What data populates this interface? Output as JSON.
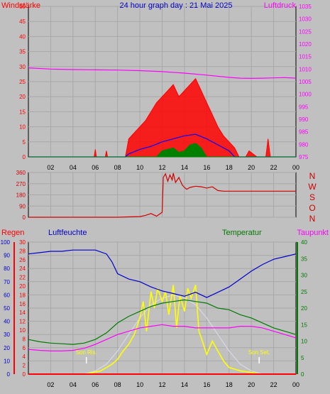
{
  "page": {
    "title": "24 hour graph day : 21 Mai 2025"
  },
  "colors": {
    "background": "#c0c0c0",
    "plot_bg": "#c0c0c0",
    "grid": "#a8a8a8",
    "wind": "#ff0000",
    "gust_green": "#008000",
    "wind_avg": "#0000ff",
    "pressure": "#ff00ff",
    "direction": "#d00000",
    "humidity": "#0000cc",
    "temperature": "#007a00",
    "dewpoint": "#ff00ff",
    "solar": "#ffff00",
    "uv": "#d8d8e8",
    "rain": "#ff0000"
  },
  "chart_data": [
    {
      "type": "line",
      "panel": "wind-pressure",
      "title": "24 hour graph day : 21 Mai 2025",
      "left_label": "Windstärke",
      "right_label": "Luftdruck",
      "x_ticks": [
        "02",
        "04",
        "06",
        "08",
        "10",
        "12",
        "14",
        "16",
        "18",
        "20",
        "22",
        "00"
      ],
      "ylim_left": [
        0,
        50
      ],
      "y_ticks_left": [
        "0",
        "5",
        "10",
        "15",
        "20",
        "25",
        "30",
        "35",
        "40",
        "45",
        "50"
      ],
      "ylim_right": [
        975,
        1035
      ],
      "y_ticks_right": [
        "975",
        "980",
        "985",
        "990",
        "995",
        "1000",
        "1005",
        "1010",
        "1015",
        "1020",
        "1025",
        "1030",
        "1035"
      ],
      "grid": true,
      "series": [
        {
          "key": "pressure",
          "axis": "right",
          "x": [
            0,
            2,
            4,
            6,
            8,
            10,
            12,
            14,
            16,
            18,
            19,
            20,
            21,
            22,
            23,
            24
          ],
          "y": [
            1010.5,
            1010,
            1009.8,
            1009.7,
            1009.6,
            1009.4,
            1009,
            1008.4,
            1007.6,
            1006.7,
            1006.4,
            1006.3,
            1006.4,
            1006.5,
            1006.6,
            1006.4
          ]
        },
        {
          "key": "gust",
          "axis": "left",
          "x": [
            0,
            5.9,
            6.0,
            6.1,
            6.9,
            7.0,
            7.1,
            8.7,
            9.0,
            9.5,
            10,
            10.5,
            11,
            11.5,
            12,
            12.5,
            13,
            13.5,
            14,
            14.5,
            15,
            15.5,
            16,
            16.5,
            17,
            17.5,
            18,
            18.5,
            18.9,
            19.2,
            19.5,
            19.8,
            20.5,
            21.3,
            21.5,
            21.7,
            22,
            24
          ],
          "y": [
            0,
            0,
            2.5,
            0,
            0,
            2,
            0,
            0,
            6,
            8,
            10,
            12,
            15,
            18,
            20,
            22,
            24,
            20,
            22,
            24,
            26,
            22,
            18,
            14,
            10,
            7,
            5,
            3,
            0,
            0,
            0,
            2,
            0,
            0,
            6,
            0,
            0,
            0
          ]
        },
        {
          "key": "wind_avg",
          "axis": "left",
          "x": [
            0,
            8.7,
            9,
            10,
            11,
            12,
            13,
            14,
            15,
            16,
            17,
            18,
            18.5,
            24
          ],
          "y": [
            0,
            0,
            1,
            2.5,
            3.5,
            5,
            6,
            7,
            7.5,
            6,
            4,
            2,
            0,
            0
          ]
        },
        {
          "key": "wind_green",
          "axis": "left",
          "x": [
            0,
            11.5,
            12,
            12.5,
            13,
            13.5,
            14,
            14.5,
            15,
            15.5,
            16,
            24
          ],
          "y": [
            0,
            0,
            2,
            2.5,
            3,
            1.5,
            2,
            4,
            4.5,
            3,
            0,
            0
          ]
        }
      ]
    },
    {
      "type": "line",
      "panel": "direction",
      "right_labels": [
        "N",
        "W",
        "S",
        "O",
        "N"
      ],
      "ylim": [
        0,
        360
      ],
      "y_ticks": [
        "0",
        "90",
        "180",
        "270",
        "360"
      ],
      "grid": true,
      "series": [
        {
          "key": "direction",
          "x": [
            0,
            8,
            9,
            10,
            10.5,
            11,
            11.5,
            12.0,
            12.1,
            12.3,
            12.5,
            12.7,
            12.9,
            13,
            13.2,
            13.5,
            13.8,
            14,
            14.2,
            14.5,
            15,
            15.5,
            16,
            16.5,
            17,
            17.5,
            18,
            20,
            22,
            24
          ],
          "y": [
            0,
            0,
            3,
            5,
            15,
            30,
            8,
            40,
            320,
            350,
            290,
            340,
            300,
            355,
            280,
            320,
            260,
            240,
            225,
            240,
            250,
            245,
            235,
            245,
            215,
            210,
            210,
            210,
            210,
            210
          ]
        }
      ]
    },
    {
      "type": "line",
      "panel": "humidity-temperature",
      "labels": {
        "regen": "Regen",
        "luftfeuchte": "Luftfeuchte",
        "temperatur": "Temperatur",
        "taupunkt": "Taupunkt",
        "sunrise": "Son Ris.",
        "sunset": "Son Set."
      },
      "ylim_humidity": [
        0,
        100
      ],
      "y_ticks_humidity": [
        "0",
        "10",
        "20",
        "30",
        "40",
        "50",
        "60",
        "70",
        "80",
        "90",
        "100"
      ],
      "ylim_rain": [
        0,
        30
      ],
      "y_ticks_rain": [
        "0",
        "2",
        "4",
        "6",
        "8",
        "10",
        "12",
        "14",
        "16",
        "18",
        "20",
        "22",
        "24",
        "26",
        "28",
        "30"
      ],
      "ylim_temp": [
        0,
        40
      ],
      "y_ticks_temp": [
        "0",
        "5",
        "10",
        "15",
        "20",
        "25",
        "30",
        "35",
        "40"
      ],
      "sunrise_hour": 5.2,
      "sunset_hour": 20.7,
      "grid": true,
      "series": [
        {
          "key": "humidity",
          "axis": "humidity",
          "x": [
            0,
            1,
            2,
            3,
            4,
            5,
            6,
            7,
            7.5,
            8,
            9,
            10,
            11,
            12,
            13,
            14,
            15,
            16,
            17,
            18,
            19,
            20,
            21,
            22,
            23,
            24
          ],
          "y": [
            91,
            92,
            93,
            93,
            94,
            94,
            94,
            91,
            85,
            76,
            72,
            70,
            66,
            63,
            61,
            59,
            62,
            58,
            62,
            66,
            72,
            78,
            83,
            87,
            89,
            91
          ]
        },
        {
          "key": "temperature",
          "axis": "temp",
          "x": [
            0,
            1,
            2,
            3,
            4,
            5,
            6,
            7,
            8,
            9,
            10,
            11,
            12,
            13,
            14,
            15,
            16,
            17,
            18,
            19,
            20,
            21,
            22,
            23,
            24
          ],
          "y": [
            10.5,
            9.8,
            9.4,
            9.2,
            9.0,
            9.4,
            10.5,
            12.5,
            15.5,
            17.5,
            19,
            20.5,
            21.5,
            22,
            22.5,
            22,
            21.5,
            20,
            19.5,
            18,
            17,
            15.5,
            14,
            13,
            12
          ]
        },
        {
          "key": "dewpoint",
          "axis": "temp",
          "x": [
            0,
            1,
            2,
            3,
            4,
            5,
            6,
            7,
            8,
            9,
            10,
            11,
            12,
            13,
            14,
            15,
            16,
            17,
            18,
            19,
            20,
            21,
            22,
            23,
            24
          ],
          "y": [
            7.5,
            7.2,
            7.0,
            7.0,
            7.2,
            7.8,
            9.0,
            10.5,
            12,
            13,
            14,
            14.5,
            15,
            14.5,
            14.5,
            14,
            14,
            14,
            14,
            14.5,
            14.5,
            14,
            13,
            12,
            11
          ]
        },
        {
          "key": "solar",
          "axis": "temp",
          "x": [
            0,
            5.2,
            5.8,
            6.5,
            7,
            7.5,
            8,
            8.5,
            9,
            9.5,
            10,
            10.3,
            10.6,
            11,
            11.3,
            11.6,
            12,
            12.3,
            12.6,
            13,
            13.3,
            13.6,
            14,
            14.3,
            14.6,
            15,
            15.3,
            15.6,
            16,
            16.5,
            17,
            17.5,
            18,
            19,
            20,
            20.7,
            24
          ],
          "y": [
            0,
            0,
            0.5,
            1,
            2,
            3,
            4.5,
            7,
            9,
            12,
            17,
            22,
            13,
            25,
            20,
            26,
            22,
            25,
            18,
            27,
            14,
            24,
            19,
            26,
            23,
            27,
            13,
            10,
            6,
            10,
            7,
            4,
            2,
            1,
            0.5,
            0,
            0
          ]
        },
        {
          "key": "uv",
          "axis": "temp",
          "x": [
            0,
            5,
            6,
            7,
            8,
            9,
            10,
            11,
            12,
            13,
            14,
            15,
            16,
            17,
            18,
            19,
            20,
            21,
            24
          ],
          "y": [
            0,
            0,
            1,
            3,
            7,
            12,
            17,
            21,
            23,
            24,
            23,
            21,
            17,
            12,
            7,
            3,
            1,
            0,
            0
          ]
        },
        {
          "key": "rain",
          "axis": "rain",
          "x": [
            0,
            24
          ],
          "y": [
            0,
            0
          ]
        }
      ]
    }
  ]
}
